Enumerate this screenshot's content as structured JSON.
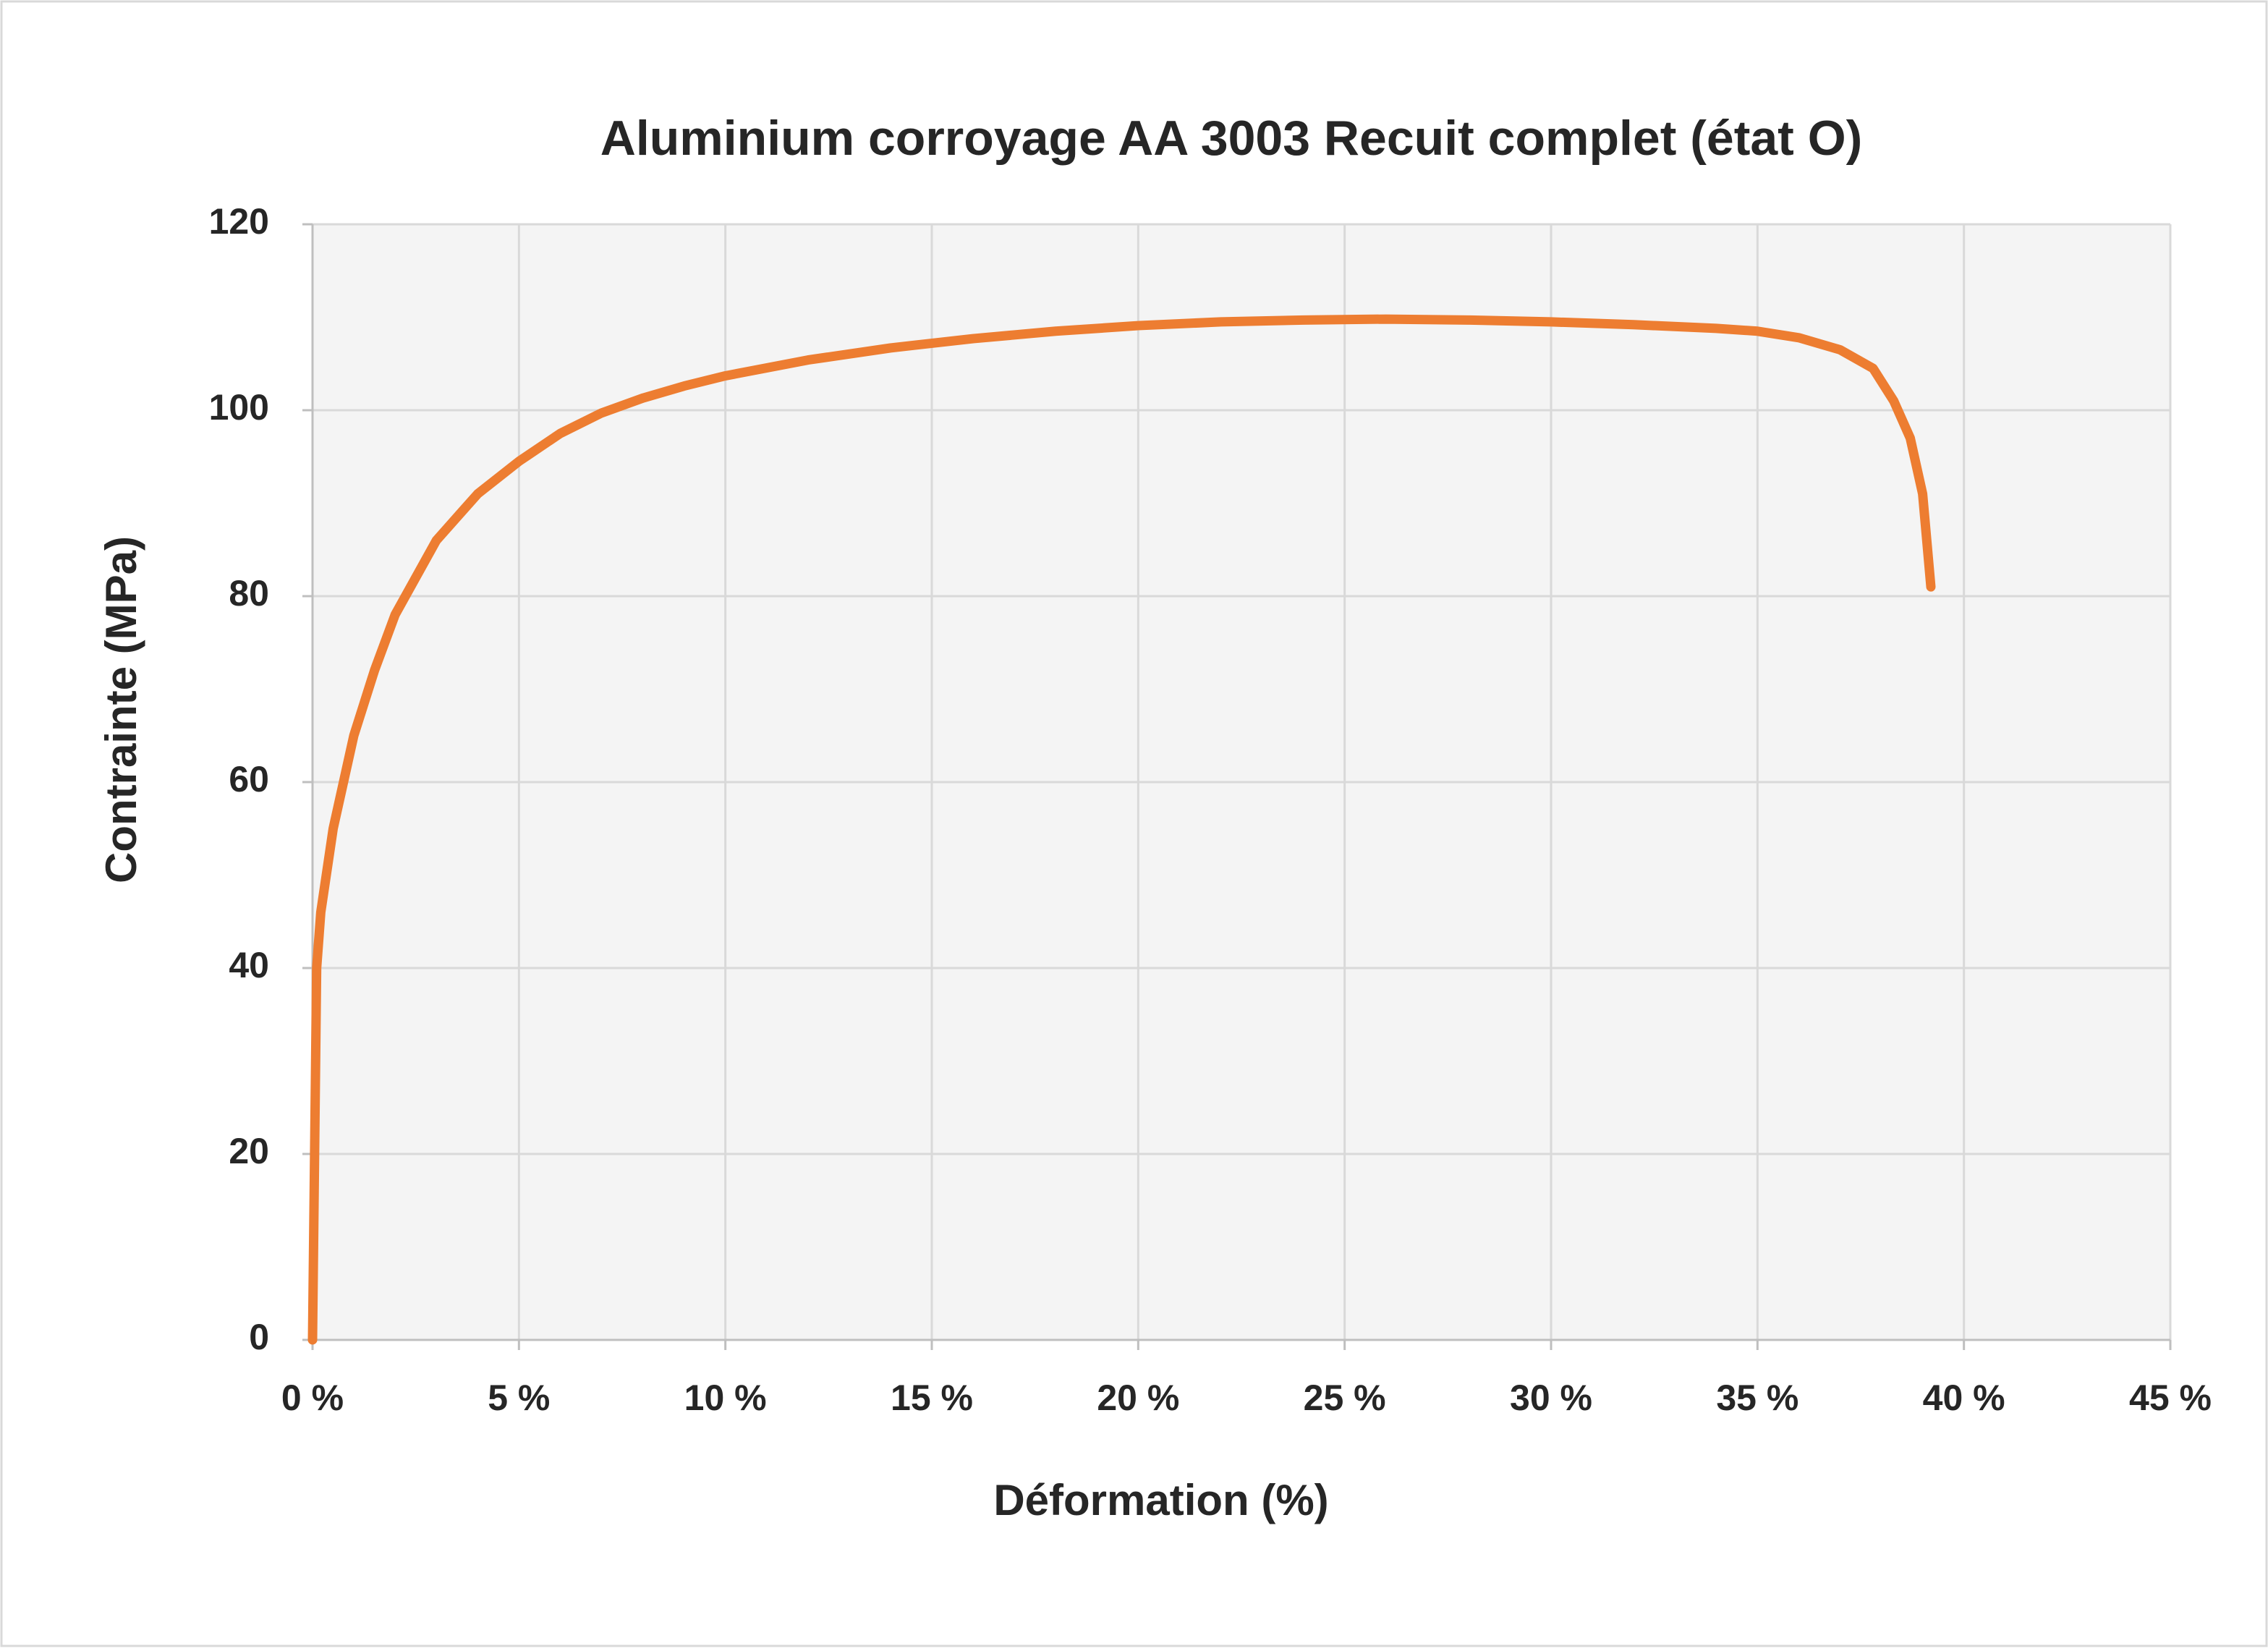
{
  "chart_data": {
    "type": "line",
    "title": "Aluminium corroyage AA 3003 Recuit complet (état O)",
    "x_label": "Déformation (%)",
    "y_label": "Contrainte (MPa)",
    "xlim": [
      0,
      45
    ],
    "ylim": [
      0,
      120
    ],
    "xticks": [
      {
        "value": 0,
        "label": "0 %"
      },
      {
        "value": 5,
        "label": "5 %"
      },
      {
        "value": 10,
        "label": "10 %"
      },
      {
        "value": 15,
        "label": "15 %"
      },
      {
        "value": 20,
        "label": "20 %"
      },
      {
        "value": 25,
        "label": "25 %"
      },
      {
        "value": 30,
        "label": "30 %"
      },
      {
        "value": 35,
        "label": "35 %"
      },
      {
        "value": 40,
        "label": "40 %"
      },
      {
        "value": 45,
        "label": "45 %"
      }
    ],
    "yticks": [
      0,
      20,
      40,
      60,
      80,
      100,
      120
    ],
    "grid": true,
    "x": [
      0,
      0.05,
      0.1,
      0.2,
      0.5,
      1,
      1.5,
      2,
      3,
      4,
      5,
      6,
      7,
      8,
      9,
      10,
      12,
      14,
      16,
      18,
      20,
      22,
      24,
      26,
      28,
      30,
      32,
      34,
      35,
      36,
      37,
      37.8,
      38.3,
      38.7,
      39,
      39.2
    ],
    "series": [
      {
        "color": "#ed7d31",
        "values": [
          0,
          20,
          40,
          46,
          55,
          65,
          72,
          78,
          86,
          91,
          94.5,
          97.5,
          99.7,
          101.3,
          102.6,
          103.7,
          105.4,
          106.7,
          107.7,
          108.5,
          109.1,
          109.5,
          109.7,
          109.8,
          109.7,
          109.5,
          109.2,
          108.8,
          108.5,
          107.8,
          106.5,
          104.5,
          101,
          97,
          91,
          81
        ]
      }
    ]
  }
}
